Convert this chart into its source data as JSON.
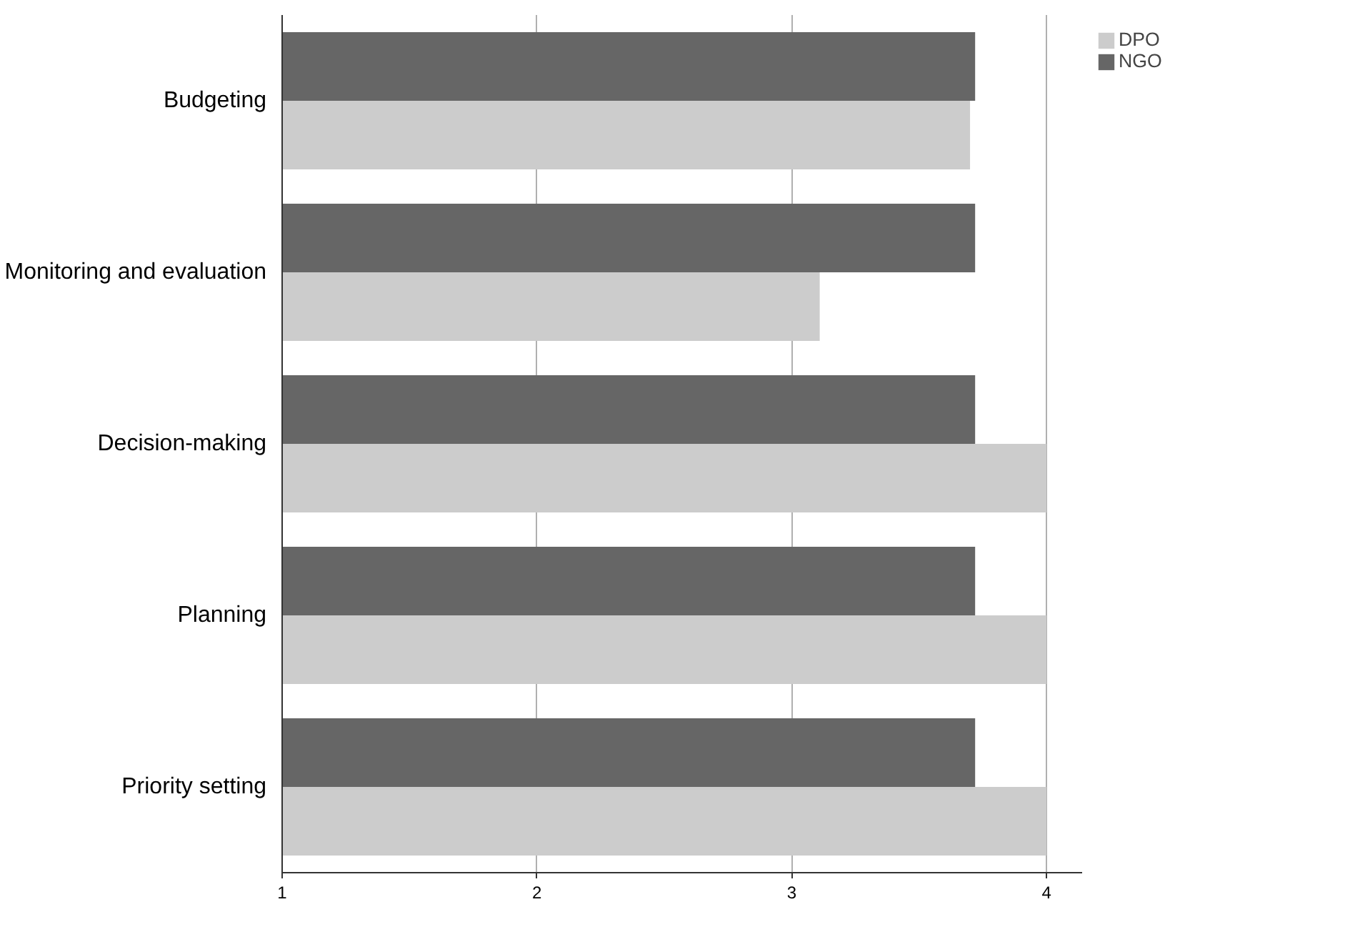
{
  "chart_data": {
    "type": "bar",
    "orientation": "horizontal",
    "categories": [
      "Budgeting",
      "Monitoring and evaluation",
      "Decision-making",
      "Planning",
      "Priority setting"
    ],
    "series": [
      {
        "name": "DPO",
        "color": "#cccccc",
        "values": [
          3.7,
          3.11,
          4,
          4,
          4
        ]
      },
      {
        "name": "NGO",
        "color": "#666666",
        "values": [
          3.72,
          3.72,
          3.72,
          3.72,
          3.72
        ]
      }
    ],
    "xlim": [
      1,
      4.14
    ],
    "xticks": [
      1,
      2,
      3,
      4
    ],
    "grid": "x",
    "legend": "top right"
  }
}
